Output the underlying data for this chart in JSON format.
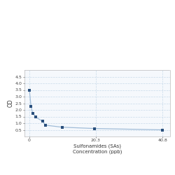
{
  "x": [
    0,
    0.5,
    1.0,
    2.0,
    4.0,
    5.0,
    10.0,
    20.0,
    40.8
  ],
  "y": [
    3.5,
    2.25,
    1.75,
    1.45,
    1.15,
    0.85,
    0.7,
    0.6,
    0.5
  ],
  "line_color": "#a0bcd8",
  "marker_color": "#2a4f7c",
  "marker_style": "s",
  "marker_size": 2.5,
  "linewidth": 0.9,
  "xlabel_line1": "Sulfonamides (SAs)",
  "xlabel_line2": "Concentration (ppb)",
  "ylabel": "OD",
  "xlim": [
    -1.5,
    43
  ],
  "ylim": [
    0,
    5.0
  ],
  "yticks": [
    0.5,
    1.0,
    1.5,
    2.0,
    2.5,
    3.0,
    3.5,
    4.0,
    4.5
  ],
  "xtick_positions": [
    0,
    20.3,
    40.8
  ],
  "xtick_labels": [
    "0",
    "20.3",
    "40.8"
  ],
  "grid_color": "#c8daea",
  "grid_style": "--",
  "background_color": "#ffffff",
  "plot_bg_color": "#f5f8fc",
  "xlabel_fontsize": 5.0,
  "ylabel_fontsize": 5.5,
  "tick_fontsize": 4.5,
  "spine_color": "#aaaaaa"
}
